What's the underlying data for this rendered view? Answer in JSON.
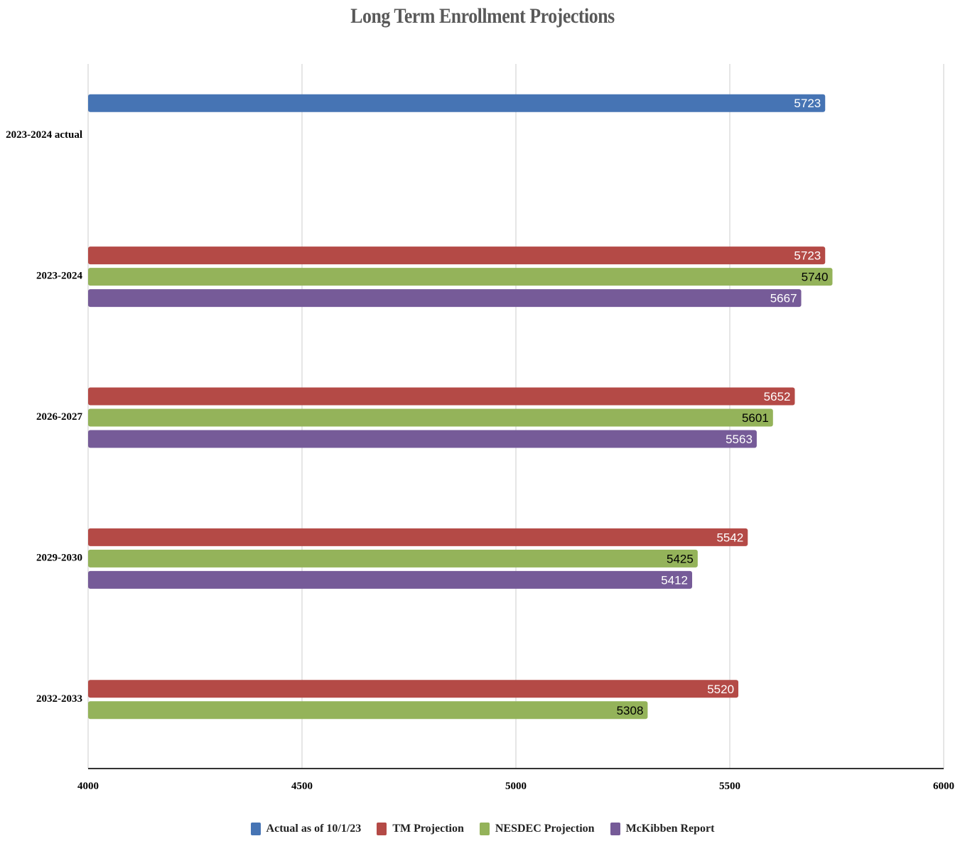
{
  "chart_data": {
    "type": "bar",
    "orientation": "horizontal",
    "title": "Long Term Enrollment Projections",
    "categories": [
      "2023-2024 actual",
      "2023-2024",
      "2026-2027",
      "2029-2030",
      "2032-2033"
    ],
    "series": [
      {
        "name": "Actual as of 10/1/23",
        "color": "#4674b4",
        "label_color": "#ffffff",
        "values": [
          5723,
          null,
          null,
          null,
          null
        ]
      },
      {
        "name": "TM Projection",
        "color": "#b44a46",
        "label_color": "#ffffff",
        "values": [
          null,
          5723,
          5652,
          5542,
          5520
        ]
      },
      {
        "name": "NESDEC Projection",
        "color": "#94b35a",
        "label_color": "#000000",
        "values": [
          null,
          5740,
          5601,
          5425,
          5308
        ]
      },
      {
        "name": "McKibben Report",
        "color": "#765b98",
        "label_color": "#ffffff",
        "values": [
          null,
          5667,
          5563,
          5412,
          null
        ]
      }
    ],
    "xlim": [
      4000,
      6000
    ],
    "xticks": [
      "4000",
      "4500",
      "5000",
      "5500",
      "6000"
    ],
    "grid": true,
    "legend": "bottom"
  }
}
